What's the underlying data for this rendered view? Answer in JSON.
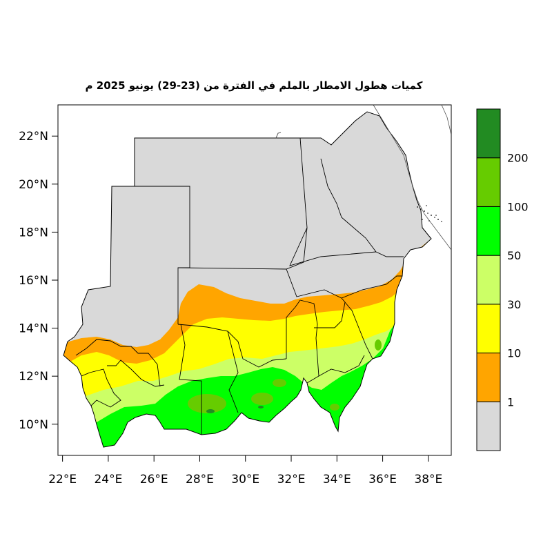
{
  "title": "كميات هطول الامطار بالملم في الفترة من (23-29) يونيو 2025 م",
  "map": {
    "lon_range": [
      21.8,
      39.0
    ],
    "lat_range": [
      8.7,
      23.3
    ],
    "x_ticks": [
      {
        "value": 22,
        "label": "22°E"
      },
      {
        "value": 24,
        "label": "24°E"
      },
      {
        "value": 26,
        "label": "26°E"
      },
      {
        "value": 28,
        "label": "28°E"
      },
      {
        "value": 30,
        "label": "30°E"
      },
      {
        "value": 32,
        "label": "32°E"
      },
      {
        "value": 34,
        "label": "34°E"
      },
      {
        "value": 36,
        "label": "36°E"
      },
      {
        "value": 38,
        "label": "38°E"
      }
    ],
    "y_ticks": [
      {
        "value": 10,
        "label": "10°N"
      },
      {
        "value": 12,
        "label": "12°N"
      },
      {
        "value": 14,
        "label": "14°N"
      },
      {
        "value": 16,
        "label": "16°N"
      },
      {
        "value": 18,
        "label": "18°N"
      },
      {
        "value": 20,
        "label": "20°N"
      },
      {
        "value": 22,
        "label": "22°N"
      }
    ]
  },
  "legend": {
    "units": "mm",
    "bins": [
      {
        "range": "0-1",
        "color": "#d9d9d9"
      },
      {
        "range": "1-10",
        "color": "#ffa500"
      },
      {
        "range": "10-30",
        "color": "#ffff00"
      },
      {
        "range": "30-50",
        "color": "#ccff66"
      },
      {
        "range": "50-100",
        "color": "#00ff00"
      },
      {
        "range": "100-200",
        "color": "#66cc00"
      },
      {
        "range": ">200",
        "color": "#228b22"
      }
    ],
    "labels": [
      "1",
      "10",
      "30",
      "50",
      "100",
      "200"
    ]
  }
}
